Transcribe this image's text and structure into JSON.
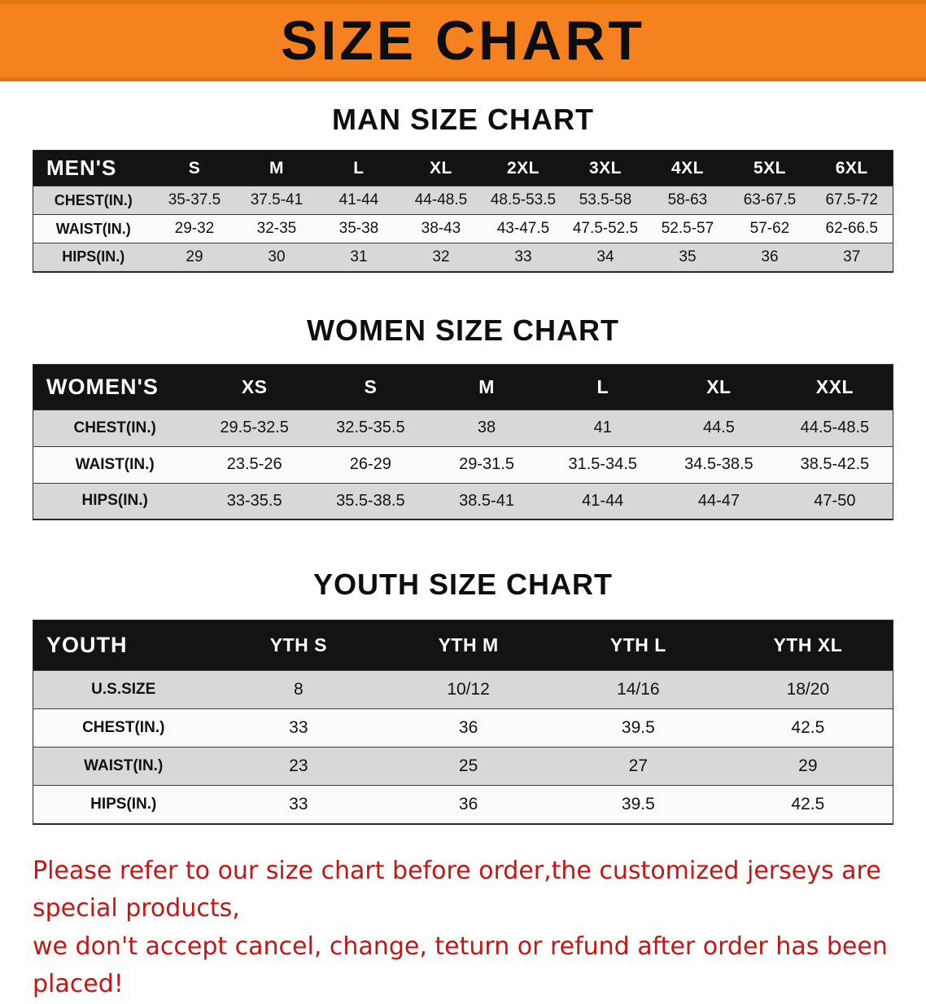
{
  "banner": {
    "title": "SIZE CHART"
  },
  "colors": {
    "banner_bg": "#f5821f",
    "header_bar": "#131313",
    "stripe_gray": "#d8d8d8",
    "footer_text": "#c41616"
  },
  "sections": [
    {
      "heading": "MAN SIZE CHART",
      "table": {
        "header": [
          "MEN'S",
          "S",
          "M",
          "L",
          "XL",
          "2XL",
          "3XL",
          "4XL",
          "5XL",
          "6XL"
        ],
        "rows": [
          {
            "label": "CHEST(IN.)",
            "values": [
              "35-37.5",
              "37.5-41",
              "41-44",
              "44-48.5",
              "48.5-53.5",
              "53.5-58",
              "58-63",
              "63-67.5",
              "67.5-72"
            ]
          },
          {
            "label": "WAIST(IN.)",
            "values": [
              "29-32",
              "32-35",
              "35-38",
              "38-43",
              "43-47.5",
              "47.5-52.5",
              "52.5-57",
              "57-62",
              "62-66.5"
            ]
          },
          {
            "label": "HIPS(IN.)",
            "values": [
              "29",
              "30",
              "31",
              "32",
              "33",
              "34",
              "35",
              "36",
              "37"
            ]
          }
        ]
      }
    },
    {
      "heading": "WOMEN SIZE CHART",
      "table": {
        "header": [
          "WOMEN'S",
          "XS",
          "S",
          "M",
          "L",
          "XL",
          "XXL"
        ],
        "rows": [
          {
            "label": "CHEST(IN.)",
            "values": [
              "29.5-32.5",
              "32.5-35.5",
              "38",
              "41",
              "44.5",
              "44.5-48.5"
            ]
          },
          {
            "label": "WAIST(IN.)",
            "values": [
              "23.5-26",
              "26-29",
              "29-31.5",
              "31.5-34.5",
              "34.5-38.5",
              "38.5-42.5"
            ]
          },
          {
            "label": "HIPS(IN.)",
            "values": [
              "33-35.5",
              "35.5-38.5",
              "38.5-41",
              "41-44",
              "44-47",
              "47-50"
            ]
          }
        ]
      }
    },
    {
      "heading": "YOUTH SIZE CHART",
      "table": {
        "header": [
          "YOUTH",
          "YTH S",
          "YTH M",
          "YTH L",
          "YTH XL"
        ],
        "rows": [
          {
            "label": "U.S.SIZE",
            "values": [
              "8",
              "10/12",
              "14/16",
              "18/20"
            ]
          },
          {
            "label": "CHEST(IN.)",
            "values": [
              "33",
              "36",
              "39.5",
              "42.5"
            ]
          },
          {
            "label": "WAIST(IN.)",
            "values": [
              "23",
              "25",
              "27",
              "29"
            ]
          },
          {
            "label": "HIPS(IN.)",
            "values": [
              "33",
              "36",
              "39.5",
              "42.5"
            ]
          }
        ]
      }
    }
  ],
  "footer": {
    "line1": "Please refer to our size chart before order,the customized jerseys are special products,",
    "line2": "we don't accept cancel, change, teturn or refund after order has been placed!"
  }
}
